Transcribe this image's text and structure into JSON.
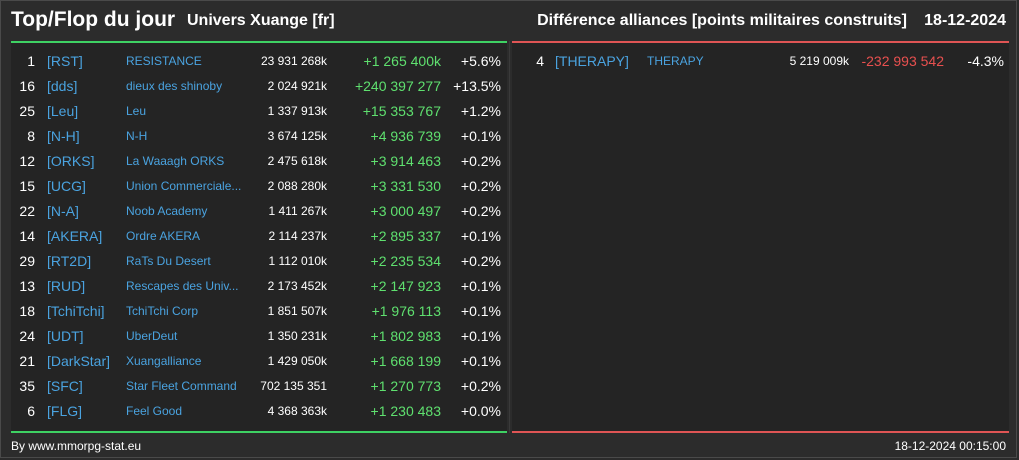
{
  "header": {
    "title": "Top/Flop du jour",
    "universe": "Univers Xuange [fr]",
    "section_title": "Différence alliances [points militaires construits]",
    "date": "18-12-2024"
  },
  "colors": {
    "top_accent": "#3ed163",
    "flop_accent": "#e05555",
    "tag_link": "#4aa3e0",
    "positive": "#5fe06f",
    "negative": "#e8504f"
  },
  "top": [
    {
      "rank": "1",
      "tag": "[RST]",
      "name": "RESISTANCE",
      "points": "23 931 268k",
      "diff": "+1 265 400k",
      "pct": "+5.6%"
    },
    {
      "rank": "16",
      "tag": "[dds]",
      "name": "dieux des shinoby",
      "points": "2 024 921k",
      "diff": "+240 397 277",
      "pct": "+13.5%"
    },
    {
      "rank": "25",
      "tag": "[Leu]",
      "name": "Leu",
      "points": "1 337 913k",
      "diff": "+15 353 767",
      "pct": "+1.2%"
    },
    {
      "rank": "8",
      "tag": "[N-H]",
      "name": "N-H",
      "points": "3 674 125k",
      "diff": "+4 936 739",
      "pct": "+0.1%"
    },
    {
      "rank": "12",
      "tag": "[ORKS]",
      "name": "La Waaagh ORKS",
      "points": "2 475 618k",
      "diff": "+3 914 463",
      "pct": "+0.2%"
    },
    {
      "rank": "15",
      "tag": "[UCG]",
      "name": "Union Commerciale...",
      "points": "2 088 280k",
      "diff": "+3 331 530",
      "pct": "+0.2%"
    },
    {
      "rank": "22",
      "tag": "[N-A]",
      "name": "Noob Academy",
      "points": "1 411 267k",
      "diff": "+3 000 497",
      "pct": "+0.2%"
    },
    {
      "rank": "14",
      "tag": "[AKERA]",
      "name": "Ordre AKERA",
      "points": "2 114 237k",
      "diff": "+2 895 337",
      "pct": "+0.1%"
    },
    {
      "rank": "29",
      "tag": "[RT2D]",
      "name": "RaTs Du Desert",
      "points": "1 112 010k",
      "diff": "+2 235 534",
      "pct": "+0.2%"
    },
    {
      "rank": "13",
      "tag": "[RUD]",
      "name": "Rescapes des Univ...",
      "points": "2 173 452k",
      "diff": "+2 147 923",
      "pct": "+0.1%"
    },
    {
      "rank": "18",
      "tag": "[TchiTchi]",
      "name": "TchiTchi Corp",
      "points": "1 851 507k",
      "diff": "+1 976 113",
      "pct": "+0.1%"
    },
    {
      "rank": "24",
      "tag": "[UDT]",
      "name": "UberDeut",
      "points": "1 350 231k",
      "diff": "+1 802 983",
      "pct": "+0.1%"
    },
    {
      "rank": "21",
      "tag": "[DarkStar]",
      "name": "Xuangalliance",
      "points": "1 429 050k",
      "diff": "+1 668 199",
      "pct": "+0.1%"
    },
    {
      "rank": "35",
      "tag": "[SFC]",
      "name": "Star Fleet Command",
      "points": "702 135 351",
      "diff": "+1 270 773",
      "pct": "+0.2%"
    },
    {
      "rank": "6",
      "tag": "[FLG]",
      "name": "Feel Good",
      "points": "4 368 363k",
      "diff": "+1 230 483",
      "pct": "+0.0%"
    }
  ],
  "flop": [
    {
      "rank": "4",
      "tag": "[THERAPY]",
      "name": "THERAPY",
      "points": "5 219 009k",
      "diff": "-232 993 542",
      "pct": "-4.3%"
    }
  ],
  "footer": {
    "site": "By www.mmorpg-stat.eu",
    "timestamp": "18-12-2024 00:15:00"
  }
}
